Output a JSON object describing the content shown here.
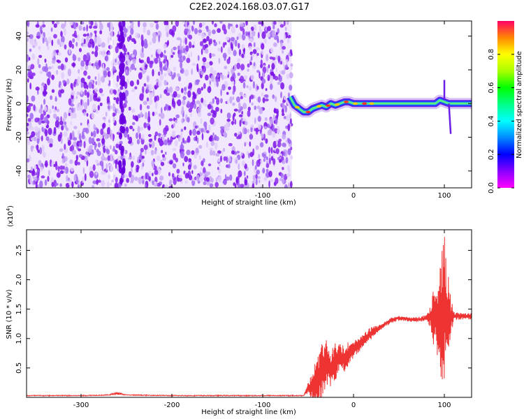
{
  "title": "C2E2.2024.168.03.07.G17",
  "colors": {
    "signal": "#3cc8c8",
    "snr_line": "#ee3333",
    "noise_dark": "#7a10e8",
    "noise_light": "#c7a6f5"
  },
  "chart_data": [
    {
      "type": "heatmap",
      "name": "spectrogram",
      "xlabel": "Height of straight line (km)",
      "ylabel": "Frequency (Hz)",
      "xlim": [
        -360,
        130
      ],
      "ylim": [
        -50,
        49
      ],
      "xticks": [
        -300,
        -200,
        -100,
        0,
        100
      ],
      "yticks": [
        -40,
        -20,
        0,
        20,
        40
      ],
      "noise_region_x": [
        -360,
        -68
      ],
      "signal_trace": {
        "x": [
          -70,
          -65,
          -60,
          -55,
          -50,
          -45,
          -40,
          -35,
          -30,
          -25,
          -20,
          -15,
          -10,
          -5,
          0,
          10,
          20,
          40,
          60,
          80,
          90,
          95,
          100,
          105,
          110,
          120,
          130
        ],
        "frequency": [
          4,
          -1,
          -3,
          -5,
          -5,
          -3,
          -2,
          -1,
          -2,
          0,
          -1,
          0,
          1,
          1,
          0,
          0,
          0,
          0,
          0,
          0,
          0,
          2,
          1,
          0,
          0,
          0,
          0
        ]
      },
      "colorbar": {
        "label": "Normalized spectral amplitude",
        "range": [
          0,
          1
        ],
        "ticks": [
          "0.0",
          "0.2",
          "0.4",
          "0.6",
          "0.8"
        ],
        "colormap": "hsv"
      }
    },
    {
      "type": "line",
      "name": "snr",
      "xlabel": "Height of straight line (km)",
      "ylabel": "SNR (10 * v/v)",
      "scale_label": "(x10",
      "scale_exp": "4",
      "xlim": [
        -360,
        130
      ],
      "ylim": [
        0,
        2.85
      ],
      "xticks": [
        -300,
        -200,
        -100,
        0,
        100
      ],
      "yticks": [
        "0.5",
        "1.0",
        "1.5",
        "2.0",
        "2.5"
      ],
      "series": [
        {
          "x": [
            -360,
            -300,
            -270,
            -260,
            -250,
            -200,
            -150,
            -100,
            -55,
            -50,
            -45,
            -40,
            -35,
            -30,
            -25,
            -20,
            -15,
            -10,
            -5,
            0,
            10,
            20,
            30,
            40,
            50,
            60,
            70,
            80,
            85,
            90,
            95,
            100,
            105,
            110,
            120,
            130
          ],
          "values": [
            0.03,
            0.03,
            0.04,
            0.07,
            0.04,
            0.03,
            0.03,
            0.03,
            0.03,
            0.15,
            0.2,
            0.3,
            0.45,
            0.55,
            0.5,
            0.6,
            0.7,
            0.65,
            0.75,
            0.8,
            0.95,
            1.1,
            1.2,
            1.3,
            1.35,
            1.33,
            1.32,
            1.35,
            1.38,
            1.4,
            1.3,
            1.5,
            1.35,
            1.38,
            1.38,
            1.38
          ],
          "envelope": [
            0,
            0,
            0,
            0.02,
            0,
            0,
            0,
            0,
            0,
            0.1,
            0.25,
            0.5,
            0.55,
            0.45,
            0.3,
            0.35,
            0.2,
            0.25,
            0.2,
            0.15,
            0.12,
            0.1,
            0.05,
            0.05,
            0.04,
            0.04,
            0.04,
            0.05,
            0.2,
            0.7,
            0.9,
            1.3,
            0.6,
            0.08,
            0.05,
            0.05
          ]
        }
      ]
    }
  ]
}
